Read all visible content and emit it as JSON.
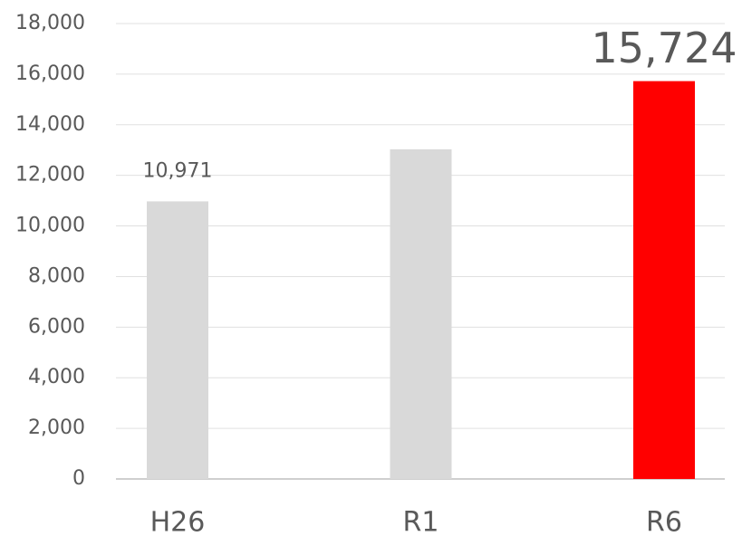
{
  "chart_data": {
    "type": "bar",
    "categories": [
      "H26",
      "R1",
      "R6"
    ],
    "values": [
      10971,
      13030,
      15724
    ],
    "value_labels": [
      "10,971",
      null,
      "15,724"
    ],
    "colors": [
      "#d9d9d9",
      "#d9d9d9",
      "#ff0000"
    ],
    "ylim": [
      0,
      18000
    ],
    "yticks": [
      0,
      {
        "value": 2000,
        "label": "2,000"
      },
      {
        "value": 4000,
        "label": "4,000"
      },
      {
        "value": 6000,
        "label": "6,000"
      },
      {
        "value": 8000,
        "label": "8,000"
      },
      {
        "value": 10000,
        "label": "10,000"
      },
      {
        "value": 12000,
        "label": "12,000"
      },
      {
        "value": 14000,
        "label": "14,000"
      },
      {
        "value": 16000,
        "label": "16,000"
      },
      {
        "value": 18000,
        "label": "18,000"
      }
    ],
    "grid": true
  }
}
